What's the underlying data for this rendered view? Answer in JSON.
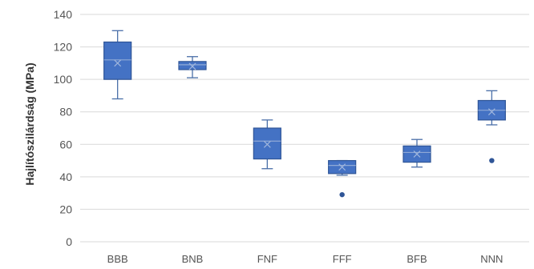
{
  "chart_data": {
    "type": "boxplot",
    "title": "",
    "xlabel": "",
    "ylabel": "Hajlítószilárdság (MPa)",
    "ylim": [
      0,
      140
    ],
    "yticks": [
      0,
      20,
      40,
      60,
      80,
      100,
      120,
      140
    ],
    "grid": true,
    "legend": "none",
    "categories": [
      "BBB",
      "BNB",
      "FNF",
      "FFF",
      "BFB",
      "NNN"
    ],
    "boxes": [
      {
        "category": "BBB",
        "min": 88,
        "q1": 100,
        "median": 112,
        "q3": 123,
        "max": 130,
        "mean": 110,
        "outliers": []
      },
      {
        "category": "BNB",
        "min": 101,
        "q1": 106,
        "median": 109,
        "q3": 111,
        "max": 114,
        "mean": 108,
        "outliers": []
      },
      {
        "category": "FNF",
        "min": 45,
        "q1": 51,
        "median": 62,
        "q3": 70,
        "max": 75,
        "mean": 60,
        "outliers": []
      },
      {
        "category": "FFF",
        "min": 41,
        "q1": 42,
        "median": 47,
        "q3": 50,
        "max": 50,
        "mean": 46,
        "outliers": [
          29
        ]
      },
      {
        "category": "BFB",
        "min": 46,
        "q1": 49,
        "median": 55,
        "q3": 59,
        "max": 63,
        "mean": 54,
        "outliers": []
      },
      {
        "category": "NNN",
        "min": 72,
        "q1": 75,
        "median": 81,
        "q3": 87,
        "max": 93,
        "mean": 80,
        "outliers": [
          50
        ]
      }
    ],
    "colors": {
      "box_fill": "#4472c4",
      "box_stroke": "#2f5597",
      "whisker": "#4a6fa8",
      "outlier": "#2f5597",
      "grid": "#d9d9d9"
    }
  }
}
